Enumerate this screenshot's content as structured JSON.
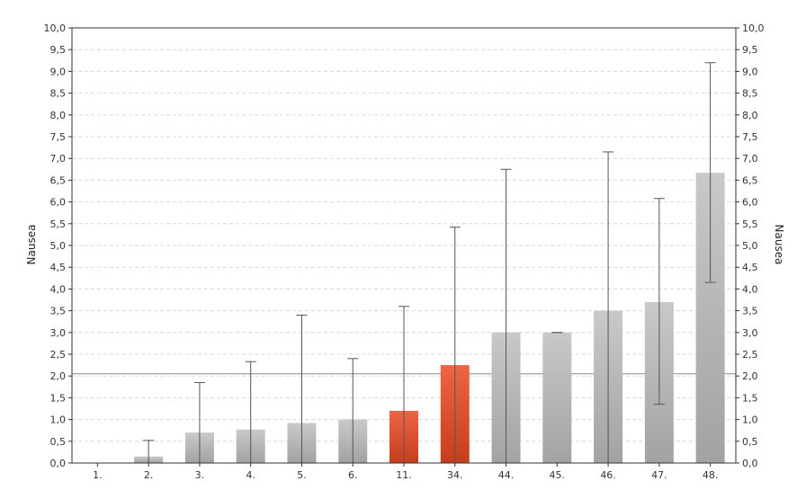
{
  "chart_data": {
    "type": "bar",
    "ylabel_left": "Nausea",
    "ylabel_right": "Nausea",
    "ylim": [
      0,
      10
    ],
    "ytick_step": 0.5,
    "ytick_labels": [
      "0,0",
      "0,5",
      "1,0",
      "1,5",
      "2,0",
      "2,5",
      "3,0",
      "3,5",
      "4,0",
      "4,5",
      "5,0",
      "5,5",
      "6,0",
      "6,5",
      "7,0",
      "7,5",
      "8,0",
      "8,5",
      "9,0",
      "9,5",
      "10,0"
    ],
    "categories": [
      "1.",
      "2.",
      "3.",
      "4.",
      "5.",
      "6.",
      "11.",
      "34.",
      "44.",
      "45.",
      "46.",
      "47.",
      "48."
    ],
    "values": [
      0,
      0.15,
      0.7,
      0.77,
      0.92,
      1.0,
      1.2,
      2.25,
      3.0,
      3.0,
      3.5,
      3.7,
      6.67
    ],
    "error_low": [
      null,
      0,
      0,
      0,
      0,
      0,
      0,
      0,
      0,
      3.0,
      0,
      1.35,
      4.15
    ],
    "error_high": [
      null,
      0.52,
      1.85,
      2.33,
      3.4,
      2.4,
      3.6,
      5.42,
      6.75,
      3.0,
      7.15,
      6.08,
      9.2
    ],
    "highlighted": [
      "11.",
      "34."
    ],
    "reference_line": 2.05,
    "grid": true,
    "colors": {
      "bar_default_top": "#c9c9c9",
      "bar_default_bottom": "#a2a2a2",
      "bar_highlight_top": "#ee6546",
      "bar_highlight_bottom": "#c63d1e",
      "error_bar": "#555555",
      "reference_line": "#8a8a8a",
      "grid": "#d8d8d8",
      "axis": "#333333"
    }
  }
}
